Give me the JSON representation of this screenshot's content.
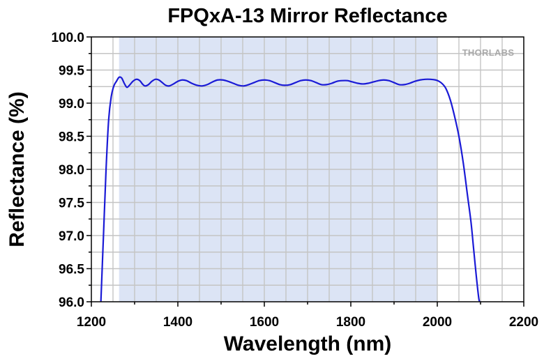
{
  "chart_data": {
    "type": "line",
    "title": "FPQxA-13 Mirror Reflectance",
    "xlabel": "Wavelength (nm)",
    "ylabel": "Reflectance (%)",
    "xlim": [
      1200,
      2200
    ],
    "ylim": [
      96.0,
      100.0
    ],
    "xticks": [
      "1200",
      "1400",
      "1600",
      "1800",
      "2000",
      "2200"
    ],
    "yticks": [
      "96.0",
      "96.5",
      "97.0",
      "97.5",
      "98.0",
      "98.5",
      "99.0",
      "99.5",
      "100.0"
    ],
    "grid": true,
    "shaded_region": {
      "x": [
        1264,
        2000
      ],
      "color": "#dce4f5"
    },
    "logo_text": "THORLABS",
    "series": [
      {
        "color": "#1a1ad6",
        "x": [
          1222,
          1228,
          1234,
          1240,
          1246,
          1252,
          1258,
          1264,
          1270,
          1276,
          1282,
          1288,
          1296,
          1304,
          1312,
          1318,
          1324,
          1332,
          1340,
          1348,
          1356,
          1364,
          1372,
          1380,
          1390,
          1400,
          1410,
          1420,
          1432,
          1444,
          1456,
          1468,
          1480,
          1492,
          1504,
          1516,
          1528,
          1540,
          1552,
          1564,
          1576,
          1588,
          1600,
          1612,
          1624,
          1636,
          1648,
          1660,
          1672,
          1684,
          1696,
          1708,
          1720,
          1732,
          1744,
          1756,
          1768,
          1780,
          1792,
          1804,
          1816,
          1828,
          1840,
          1852,
          1864,
          1876,
          1888,
          1900,
          1912,
          1924,
          1936,
          1948,
          1960,
          1972,
          1984,
          1996,
          2004,
          2012,
          2020,
          2030,
          2040,
          2050,
          2060,
          2070,
          2078,
          2084,
          2090,
          2096,
          2099
        ],
        "y": [
          96.0,
          97.0,
          98.0,
          98.75,
          99.1,
          99.26,
          99.33,
          99.39,
          99.38,
          99.3,
          99.24,
          99.27,
          99.33,
          99.36,
          99.34,
          99.29,
          99.26,
          99.28,
          99.33,
          99.36,
          99.35,
          99.31,
          99.27,
          99.26,
          99.29,
          99.33,
          99.35,
          99.34,
          99.3,
          99.27,
          99.26,
          99.28,
          99.32,
          99.35,
          99.35,
          99.33,
          99.3,
          99.27,
          99.26,
          99.28,
          99.31,
          99.34,
          99.35,
          99.34,
          99.31,
          99.28,
          99.27,
          99.28,
          99.31,
          99.34,
          99.35,
          99.34,
          99.31,
          99.28,
          99.28,
          99.3,
          99.33,
          99.34,
          99.34,
          99.32,
          99.3,
          99.29,
          99.3,
          99.32,
          99.34,
          99.35,
          99.34,
          99.31,
          99.28,
          99.28,
          99.3,
          99.33,
          99.35,
          99.36,
          99.36,
          99.35,
          99.33,
          99.29,
          99.22,
          99.05,
          98.8,
          98.5,
          98.1,
          97.6,
          97.2,
          96.8,
          96.4,
          96.05,
          96.0
        ]
      }
    ]
  }
}
